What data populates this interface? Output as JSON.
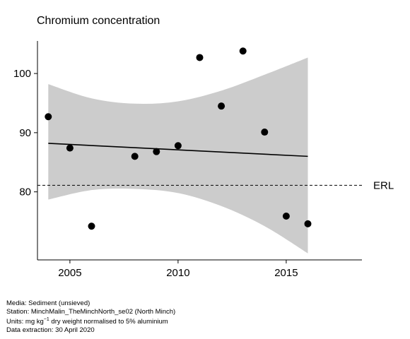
{
  "chart_data": {
    "type": "scatter",
    "title": "Chromium concentration",
    "xlabel": "",
    "ylabel": "",
    "xlim": [
      2003.5,
      2018.5
    ],
    "ylim": [
      68.5,
      105.5
    ],
    "x_ticks": [
      2005,
      2010,
      2015
    ],
    "y_ticks": [
      80,
      90,
      100
    ],
    "grid": false,
    "points": [
      {
        "x": 2004,
        "y": 92.7
      },
      {
        "x": 2005,
        "y": 87.4
      },
      {
        "x": 2006,
        "y": 74.2
      },
      {
        "x": 2008,
        "y": 86.0
      },
      {
        "x": 2009,
        "y": 86.8
      },
      {
        "x": 2010,
        "y": 87.8
      },
      {
        "x": 2011,
        "y": 102.7
      },
      {
        "x": 2012,
        "y": 94.5
      },
      {
        "x": 2013,
        "y": 103.8
      },
      {
        "x": 2014,
        "y": 90.1
      },
      {
        "x": 2015,
        "y": 75.9
      },
      {
        "x": 2016,
        "y": 74.6
      }
    ],
    "trend": {
      "x": [
        2004,
        2016
      ],
      "y": [
        88.2,
        86.0
      ]
    },
    "confidence_band": {
      "x": [
        2004,
        2006,
        2008,
        2010,
        2012,
        2014,
        2016
      ],
      "upper": [
        98.2,
        95.8,
        94.9,
        95.3,
        97.1,
        99.8,
        102.7
      ],
      "lower": [
        78.7,
        80.3,
        80.5,
        79.8,
        77.6,
        74.2,
        69.6
      ]
    },
    "reference_line": {
      "label": "ERL",
      "y": 81.1,
      "style": "dashed"
    },
    "colors": {
      "points": "#000000",
      "band": "#cccccc",
      "trend": "#000000"
    }
  },
  "footer": {
    "media": "Media: Sediment (unsieved)",
    "station": "Station: MinchMalin_TheMinchNorth_se02 (North Minch)",
    "units_prefix": "Units:  mg kg",
    "units_exponent": "−1",
    "units_suffix": " dry weight normalised to 5% aluminium",
    "extraction": "Data extraction: 30 April 2020"
  }
}
